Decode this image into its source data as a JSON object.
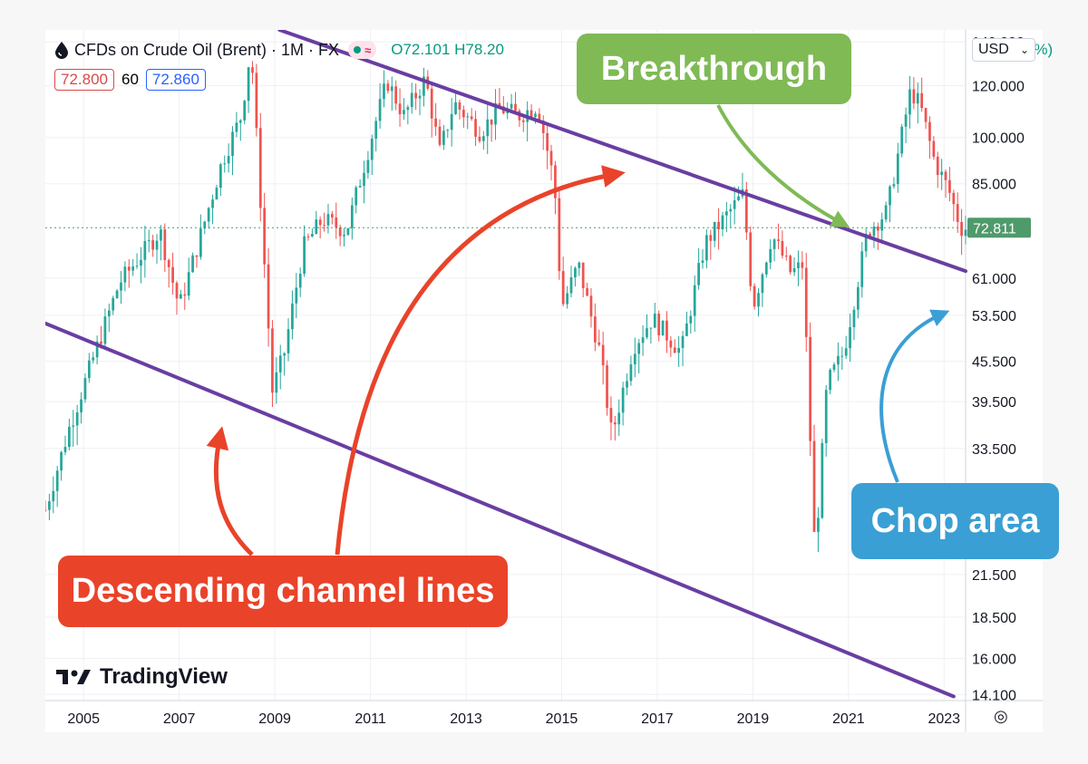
{
  "header": {
    "title": "CFDs on Crude Oil (Brent) · 1M · FX",
    "ohlc": "O72.101  H78.20",
    "change_tail": "3%)",
    "bid": "72.800",
    "spread": "60",
    "ask": "72.860",
    "currency": "USD",
    "currency_caret": "⌄"
  },
  "brand": {
    "name": "TradingView"
  },
  "settings_icon": "◎",
  "current_price_label": "72.811",
  "callouts": {
    "breakthrough": "Breakthrough",
    "chop_area": "Chop area",
    "descending": "Descending channel lines"
  },
  "colors": {
    "up": "#26a69a",
    "down": "#ef5350",
    "channel": "#6a3ea1",
    "breakthrough": "#7fba55",
    "chop": "#3a9fd4",
    "descending": "#e9432a",
    "price_tag": "#4f9a6b"
  },
  "chart_data": {
    "type": "candlestick",
    "title": "CFDs on Crude Oil (Brent) · 1M · FX",
    "interval": "1M",
    "y_scale": "log",
    "ylim": [
      13.8,
      146
    ],
    "y_ticks": [
      14.1,
      16,
      18.5,
      21.5,
      33.5,
      39.5,
      45.5,
      53.5,
      61,
      85,
      100,
      120,
      140
    ],
    "y_tick_labels": [
      "14.100",
      "16.000",
      "18.500",
      "21.500",
      "33.500",
      "39.500",
      "45.500",
      "53.500",
      "61.000",
      "85.000",
      "100.000",
      "120.000",
      "140.000"
    ],
    "x_ticks": [
      2005,
      2007,
      2009,
      2011,
      2013,
      2015,
      2017,
      2019,
      2021,
      2023
    ],
    "xlim": [
      2004.2,
      2023.45
    ],
    "current_price": 72.811,
    "anchors": [
      [
        2004.2,
        27
      ],
      [
        2004.7,
        36
      ],
      [
        2005.2,
        46
      ],
      [
        2005.75,
        60
      ],
      [
        2006.6,
        72
      ],
      [
        2007.0,
        55
      ],
      [
        2007.5,
        73
      ],
      [
        2007.9,
        92
      ],
      [
        2008.3,
        108
      ],
      [
        2008.5,
        138
      ],
      [
        2008.75,
        70
      ],
      [
        2008.95,
        41
      ],
      [
        2009.2,
        47
      ],
      [
        2009.6,
        68
      ],
      [
        2010.0,
        75
      ],
      [
        2010.5,
        72
      ],
      [
        2011.1,
        105
      ],
      [
        2011.35,
        122
      ],
      [
        2011.7,
        108
      ],
      [
        2012.15,
        123
      ],
      [
        2012.45,
        95
      ],
      [
        2012.75,
        113
      ],
      [
        2013.3,
        102
      ],
      [
        2013.7,
        111
      ],
      [
        2014.1,
        108
      ],
      [
        2014.5,
        112
      ],
      [
        2014.85,
        85
      ],
      [
        2015.0,
        55
      ],
      [
        2015.35,
        64
      ],
      [
        2015.8,
        47
      ],
      [
        2016.05,
        35
      ],
      [
        2016.5,
        48
      ],
      [
        2016.9,
        53
      ],
      [
        2017.5,
        47
      ],
      [
        2018.0,
        69
      ],
      [
        2018.8,
        82
      ],
      [
        2019.0,
        55
      ],
      [
        2019.4,
        71
      ],
      [
        2019.8,
        62
      ],
      [
        2020.05,
        64
      ],
      [
        2020.3,
        23
      ],
      [
        2020.55,
        42
      ],
      [
        2020.9,
        47
      ],
      [
        2021.4,
        72
      ],
      [
        2021.8,
        77
      ],
      [
        2022.3,
        118
      ],
      [
        2022.5,
        112
      ],
      [
        2022.8,
        92
      ],
      [
        2023.1,
        83
      ],
      [
        2023.35,
        72.8
      ]
    ],
    "channel_lines": [
      {
        "name": "Upper channel",
        "points": [
          [
            2009.1,
            146
          ],
          [
            2023.45,
            62.5
          ]
        ]
      },
      {
        "name": "Lower channel",
        "points": [
          [
            2004.2,
            52
          ],
          [
            2023.2,
            14.0
          ]
        ]
      }
    ],
    "annotations": [
      "Breakthrough",
      "Chop area",
      "Descending channel lines"
    ]
  }
}
